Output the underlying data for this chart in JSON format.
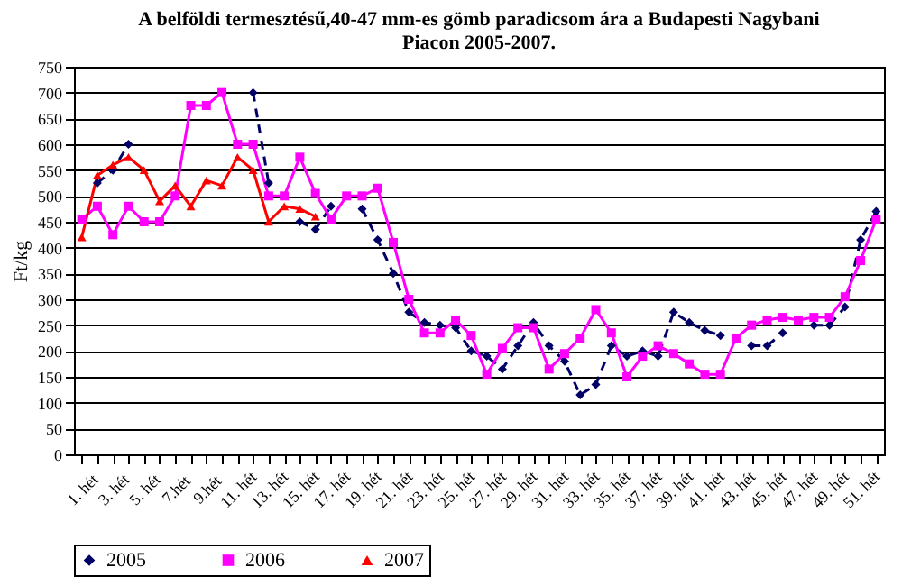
{
  "chart_data": {
    "type": "line",
    "title": "A belföldi termesztésű,40-47 mm-es gömb paradicsom ára a Budapesti Nagybani Piacon 2005-2007.",
    "ylabel": "Ft/kg",
    "categories": [
      "1. hét",
      null,
      "3. hét",
      null,
      "5. hét",
      null,
      "7.hét",
      null,
      "9.hét",
      null,
      "11. hét",
      null,
      "13. hét",
      null,
      "15. hét",
      null,
      "17. hét",
      null,
      "19. hét",
      null,
      "21. hét",
      null,
      "23. hét",
      null,
      "25. hét",
      null,
      "27. hét",
      null,
      "29. hét",
      null,
      "31. hét",
      null,
      "33. hét",
      null,
      "35. hét",
      null,
      "37. hét",
      null,
      "39. hét",
      null,
      "41. hét",
      null,
      "43. hét",
      null,
      "45. hét",
      null,
      "47. hét",
      null,
      "49. hét",
      null,
      "51. hét",
      null
    ],
    "series": [
      {
        "name": "2005",
        "color": "#000066",
        "marker": "diamond",
        "line_style": "dashed",
        "values": [
          null,
          525,
          550,
          600,
          null,
          null,
          null,
          null,
          null,
          null,
          null,
          700,
          525,
          null,
          450,
          435,
          480,
          null,
          475,
          415,
          350,
          275,
          255,
          250,
          245,
          200,
          190,
          165,
          210,
          255,
          210,
          180,
          115,
          135,
          210,
          190,
          200,
          190,
          275,
          255,
          240,
          230,
          null,
          210,
          210,
          235,
          null,
          250,
          250,
          285,
          415,
          470
        ]
      },
      {
        "name": "2006",
        "color": "#ff00ff",
        "marker": "square",
        "line_style": "solid",
        "values": [
          455,
          480,
          425,
          480,
          450,
          450,
          500,
          675,
          675,
          700,
          600,
          600,
          500,
          500,
          575,
          505,
          455,
          500,
          500,
          515,
          410,
          300,
          235,
          235,
          260,
          230,
          155,
          205,
          245,
          245,
          165,
          195,
          225,
          280,
          235,
          150,
          190,
          210,
          195,
          175,
          155,
          155,
          225,
          250,
          260,
          265,
          260,
          265,
          265,
          305,
          375,
          455
        ]
      },
      {
        "name": "2007",
        "color": "#ff0000",
        "marker": "triangle",
        "line_style": "solid",
        "values": [
          420,
          540,
          560,
          575,
          550,
          490,
          520,
          480,
          530,
          520,
          575,
          550,
          450,
          480,
          475,
          460,
          null,
          null,
          null,
          null,
          null,
          null,
          null,
          null,
          null,
          null,
          null,
          null,
          null,
          null,
          null,
          null,
          null,
          null,
          null,
          null,
          null,
          null,
          null,
          null,
          null,
          null,
          null,
          null,
          null,
          null,
          null,
          null,
          null,
          null,
          null,
          null
        ]
      }
    ],
    "ylim": [
      0,
      750
    ],
    "yticks": [
      0,
      50,
      100,
      150,
      200,
      250,
      300,
      350,
      400,
      450,
      500,
      550,
      600,
      650,
      700,
      750
    ],
    "grid": "y",
    "legend": "bottom"
  }
}
